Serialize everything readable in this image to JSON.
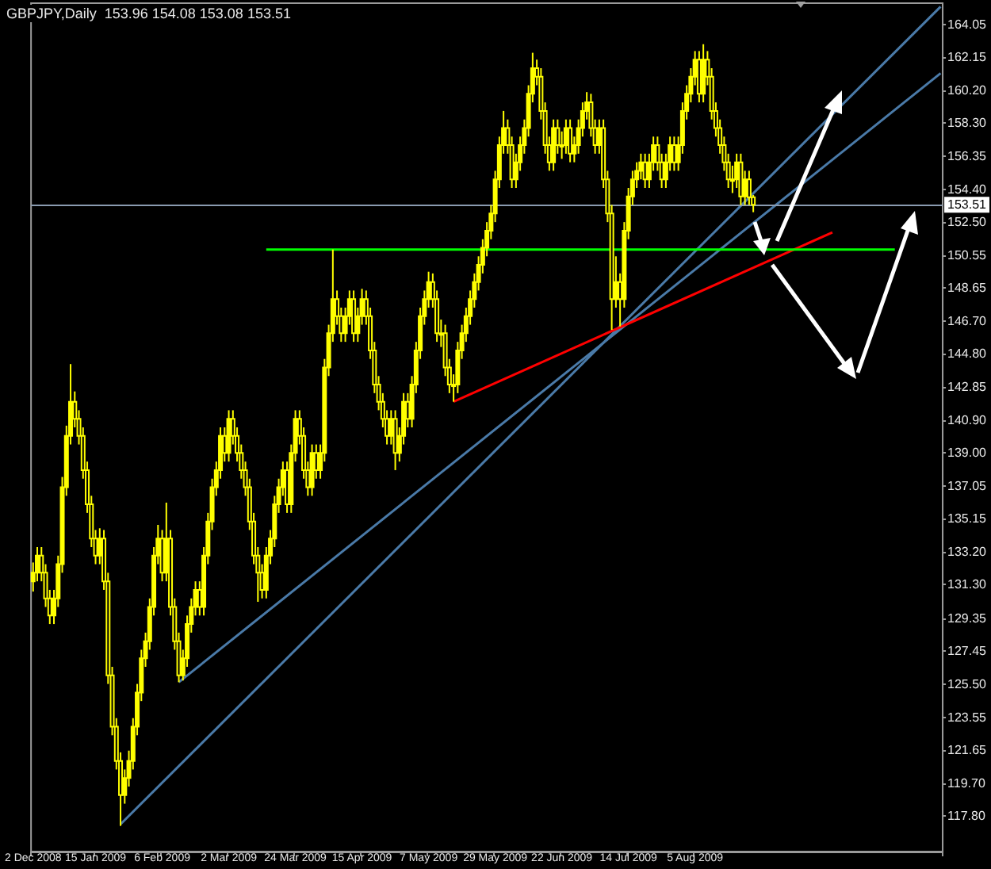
{
  "chart_data": {
    "type": "candlestick",
    "title": "GBPJPY,Daily  153.96 154.08 153.08 153.51",
    "categories": [
      "2 Dec 2008",
      null,
      null,
      null,
      null,
      null,
      null,
      null,
      null,
      null,
      null,
      null,
      null,
      null,
      null,
      "15 Jan 2009",
      null,
      null,
      null,
      null,
      null,
      null,
      null,
      null,
      null,
      null,
      null,
      null,
      null,
      null,
      null,
      "6 Feb 2009",
      null,
      null,
      null,
      null,
      null,
      null,
      null,
      null,
      null,
      null,
      null,
      null,
      null,
      null,
      null,
      "2 Mar 2009",
      null,
      null,
      null,
      null,
      null,
      null,
      null,
      null,
      null,
      null,
      null,
      null,
      null,
      null,
      null,
      "24 Mar 2009",
      null,
      null,
      null,
      null,
      null,
      null,
      null,
      null,
      null,
      null,
      null,
      null,
      null,
      null,
      null,
      "15 Apr 2009",
      null,
      null,
      null,
      null,
      null,
      null,
      null,
      null,
      null,
      null,
      null,
      null,
      null,
      null,
      null,
      "7 May 2009",
      null,
      null,
      null,
      null,
      null,
      null,
      null,
      null,
      null,
      null,
      null,
      null,
      null,
      null,
      null,
      "29 May 2009",
      null,
      null,
      null,
      null,
      null,
      null,
      null,
      null,
      null,
      null,
      null,
      null,
      null,
      null,
      null,
      "22 Jun 2009",
      null,
      null,
      null,
      null,
      null,
      null,
      null,
      null,
      null,
      null,
      null,
      null,
      null,
      null,
      null,
      "14 Jul 2009",
      null,
      null,
      null,
      null,
      null,
      null,
      null,
      null,
      null,
      null,
      null,
      null,
      null,
      null,
      null,
      "5 Aug 2009",
      null,
      null,
      null,
      null,
      null,
      null,
      null,
      null,
      null,
      null,
      null,
      null,
      null,
      null,
      null,
      null,
      null,
      null,
      null,
      null,
      null,
      null,
      null,
      null,
      null,
      null,
      null,
      null,
      null,
      null,
      null,
      null,
      null,
      null,
      null,
      null,
      null,
      null,
      null,
      null,
      null,
      null,
      null,
      null,
      null,
      null,
      null,
      null,
      null,
      null,
      null,
      null,
      null,
      null,
      null,
      null,
      null,
      null,
      null
    ],
    "ohlc": [
      [
        131.5,
        132.6,
        130.9,
        132
      ],
      [
        132,
        133.5,
        131.5,
        133
      ],
      [
        133,
        133.5,
        131.5,
        132
      ],
      [
        132,
        132.5,
        130,
        130.5
      ],
      [
        130.5,
        131,
        129,
        129.5
      ],
      [
        129.5,
        131,
        129,
        130.5
      ],
      [
        130.5,
        133,
        130,
        132.5
      ],
      [
        132.5,
        137.6,
        132,
        137
      ],
      [
        137,
        140.6,
        136.5,
        140
      ],
      [
        140,
        144.2,
        139.5,
        142
      ],
      [
        142,
        142.6,
        140.5,
        141
      ],
      [
        141,
        141.5,
        139.5,
        140
      ],
      [
        140,
        140.5,
        137.5,
        138
      ],
      [
        138,
        138.5,
        135.5,
        136
      ],
      [
        136,
        136.5,
        133.5,
        134
      ],
      [
        134,
        134.5,
        132.5,
        133
      ],
      [
        133,
        134.6,
        132.5,
        134
      ],
      [
        134,
        134.5,
        131,
        131.5
      ],
      [
        131.5,
        132,
        125.5,
        126
      ],
      [
        126,
        126.5,
        122.5,
        123
      ],
      [
        123,
        123.5,
        120.5,
        121
      ],
      [
        121,
        121.5,
        117.2,
        119
      ],
      [
        119,
        120.5,
        118.5,
        120
      ],
      [
        120,
        121.6,
        119.5,
        121
      ],
      [
        121,
        123.5,
        120.5,
        123
      ],
      [
        123,
        125.5,
        122.5,
        125
      ],
      [
        125,
        127.5,
        124.5,
        127
      ],
      [
        127,
        128.5,
        126.5,
        128
      ],
      [
        128,
        130.5,
        127.5,
        130
      ],
      [
        130,
        133.5,
        129.5,
        133
      ],
      [
        133,
        134.8,
        132.5,
        134
      ],
      [
        134,
        134.5,
        131.5,
        132
      ],
      [
        132,
        136.1,
        131.5,
        134
      ],
      [
        134,
        134.5,
        129.5,
        130
      ],
      [
        130,
        130.5,
        127.5,
        128
      ],
      [
        128,
        128.5,
        125.6,
        126
      ],
      [
        126,
        127.5,
        125.7,
        127
      ],
      [
        127,
        129.5,
        126.5,
        129
      ],
      [
        129,
        130.5,
        128.5,
        130
      ],
      [
        130,
        131.5,
        129.5,
        131
      ],
      [
        131,
        131.5,
        129.5,
        130
      ],
      [
        130,
        133.5,
        129.5,
        133
      ],
      [
        133,
        135.5,
        132.5,
        135
      ],
      [
        135,
        137.5,
        134.5,
        137
      ],
      [
        137,
        138.5,
        136.5,
        138
      ],
      [
        138,
        140.5,
        137.5,
        140
      ],
      [
        140,
        140.5,
        138.5,
        139
      ],
      [
        139,
        141.5,
        138.5,
        141
      ],
      [
        141,
        141.5,
        139.5,
        140
      ],
      [
        140,
        140.5,
        138.5,
        139
      ],
      [
        139,
        139.5,
        137.5,
        138
      ],
      [
        138,
        138.5,
        136.5,
        137
      ],
      [
        137,
        137.5,
        134.5,
        135
      ],
      [
        135,
        135.5,
        132.5,
        133
      ],
      [
        133,
        133.5,
        130.3,
        132
      ],
      [
        132,
        132.5,
        130.5,
        131
      ],
      [
        131,
        133.5,
        130.5,
        133
      ],
      [
        133,
        134.5,
        132.5,
        134
      ],
      [
        134,
        136.5,
        133.5,
        136
      ],
      [
        136,
        137.5,
        135.5,
        137
      ],
      [
        137,
        138.5,
        136.5,
        138
      ],
      [
        138,
        138.5,
        135.5,
        136
      ],
      [
        136,
        139.5,
        135.5,
        139
      ],
      [
        139,
        141.5,
        138.5,
        141
      ],
      [
        141,
        141.5,
        139.5,
        140
      ],
      [
        140,
        140.5,
        137.5,
        138
      ],
      [
        138,
        138.5,
        136.5,
        137
      ],
      [
        137,
        139.5,
        136.5,
        139
      ],
      [
        139,
        139.5,
        137.5,
        138
      ],
      [
        138,
        139.5,
        137.5,
        139
      ],
      [
        139,
        144.5,
        138.5,
        144
      ],
      [
        144,
        146.5,
        143.5,
        146
      ],
      [
        146,
        150.9,
        145.5,
        148
      ],
      [
        148,
        148.5,
        146.5,
        147
      ],
      [
        147,
        147.5,
        145.5,
        146
      ],
      [
        146,
        147.5,
        145.5,
        147
      ],
      [
        147,
        148.5,
        146.5,
        148
      ],
      [
        148,
        148.5,
        145.5,
        146
      ],
      [
        146,
        147.5,
        145.5,
        147
      ],
      [
        147,
        148.6,
        146.5,
        148
      ],
      [
        148,
        148.5,
        146.5,
        147
      ],
      [
        147,
        147.5,
        144.5,
        145
      ],
      [
        145,
        145.5,
        142.5,
        143
      ],
      [
        143,
        143.5,
        141.5,
        142
      ],
      [
        142,
        142.5,
        140.5,
        141
      ],
      [
        141,
        141.5,
        139.5,
        140
      ],
      [
        140,
        141.5,
        139.5,
        141
      ],
      [
        141,
        141.5,
        138,
        139
      ],
      [
        139,
        140.5,
        138.5,
        140
      ],
      [
        140,
        142.5,
        139.5,
        142
      ],
      [
        142,
        142.5,
        140.5,
        141
      ],
      [
        141,
        143.5,
        140.5,
        143
      ],
      [
        143,
        145.5,
        142.5,
        145
      ],
      [
        145,
        147.5,
        144.5,
        147
      ],
      [
        147,
        148.5,
        146.5,
        148
      ],
      [
        148,
        149.6,
        147.5,
        149
      ],
      [
        149,
        149.5,
        147.5,
        148
      ],
      [
        148,
        148.5,
        145.5,
        146
      ],
      [
        146,
        146.8,
        145.2,
        146
      ],
      [
        146,
        146.5,
        143.5,
        144
      ],
      [
        144,
        144.5,
        142.5,
        143
      ],
      [
        143,
        143.6,
        142,
        143
      ],
      [
        143,
        145.5,
        142.5,
        145
      ],
      [
        145,
        146.5,
        144.5,
        146
      ],
      [
        146,
        147.5,
        145.5,
        147
      ],
      [
        147,
        148.5,
        146.5,
        148
      ],
      [
        148,
        149.5,
        147.5,
        149
      ],
      [
        149,
        150.5,
        148.5,
        150
      ],
      [
        150,
        151.5,
        149.5,
        151
      ],
      [
        151,
        152.5,
        150.5,
        152
      ],
      [
        152,
        153.5,
        151.5,
        153
      ],
      [
        153,
        155.5,
        152.5,
        155
      ],
      [
        155,
        157.5,
        154.5,
        157
      ],
      [
        157,
        159,
        156.5,
        158
      ],
      [
        158,
        158.5,
        156.5,
        157
      ],
      [
        157,
        157.5,
        154.5,
        155
      ],
      [
        155,
        156.5,
        154.5,
        156
      ],
      [
        156,
        157.5,
        155.5,
        157
      ],
      [
        157,
        158.5,
        156.5,
        158
      ],
      [
        158,
        160.5,
        157.5,
        160
      ],
      [
        160,
        162.4,
        159.5,
        161.5
      ],
      [
        161.5,
        162,
        160.5,
        161
      ],
      [
        161,
        161.5,
        158.5,
        159
      ],
      [
        159,
        159.5,
        156.5,
        157
      ],
      [
        157,
        157.5,
        155.5,
        156
      ],
      [
        156,
        158.5,
        155.5,
        158
      ],
      [
        158,
        158.5,
        156.5,
        157
      ],
      [
        157,
        157.8,
        156.2,
        157
      ],
      [
        157,
        158.5,
        156.5,
        158
      ],
      [
        158,
        158.5,
        156,
        156.5
      ],
      [
        156.5,
        157.5,
        156,
        157
      ],
      [
        157,
        158.5,
        156.5,
        158
      ],
      [
        158,
        159.5,
        157.5,
        159
      ],
      [
        159,
        160.1,
        158.5,
        159.5
      ],
      [
        159.5,
        160,
        157.5,
        158
      ],
      [
        158,
        158.5,
        156.5,
        157
      ],
      [
        157,
        158.5,
        156.5,
        158
      ],
      [
        158,
        158.5,
        154.5,
        155
      ],
      [
        155,
        155.5,
        152.5,
        153
      ],
      [
        153,
        153.5,
        146.2,
        148
      ],
      [
        148,
        150.5,
        147.5,
        149
      ],
      [
        149,
        149.5,
        146.4,
        148
      ],
      [
        148,
        152.5,
        147.5,
        152
      ],
      [
        152,
        154.5,
        151.5,
        154
      ],
      [
        154,
        155.5,
        153.5,
        155
      ],
      [
        155,
        156,
        154.5,
        155.5
      ],
      [
        155.5,
        156.5,
        155,
        156
      ],
      [
        156,
        156.5,
        154.5,
        155
      ],
      [
        155,
        156.5,
        154.5,
        156
      ],
      [
        156,
        157.5,
        155.5,
        157
      ],
      [
        157,
        157.5,
        155.5,
        156
      ],
      [
        156,
        156.5,
        154.5,
        155
      ],
      [
        155,
        156.5,
        154.5,
        156
      ],
      [
        156,
        157.5,
        155.5,
        157
      ],
      [
        157,
        157.5,
        155.5,
        156
      ],
      [
        156,
        157.5,
        155.5,
        157
      ],
      [
        157,
        159.5,
        156.5,
        159
      ],
      [
        159,
        160.5,
        158.5,
        160
      ],
      [
        160,
        161.5,
        159.5,
        161
      ],
      [
        161,
        162.5,
        160.5,
        162
      ],
      [
        162,
        162.5,
        159.5,
        160
      ],
      [
        160,
        162.9,
        159.5,
        162
      ],
      [
        162,
        162.5,
        160.5,
        161
      ],
      [
        161,
        161.5,
        158.5,
        159
      ],
      [
        159,
        159.5,
        157.5,
        158
      ],
      [
        158,
        158.5,
        156.5,
        157
      ],
      [
        157,
        157.5,
        155.5,
        156
      ],
      [
        156,
        156.5,
        154.5,
        155
      ],
      [
        155,
        155.8,
        154.2,
        155
      ],
      [
        155,
        156.5,
        154.5,
        156
      ],
      [
        156,
        156.5,
        153.5,
        154
      ],
      [
        154,
        155.5,
        153.5,
        155
      ],
      [
        155,
        155.5,
        153.5,
        153.96
      ],
      [
        153.96,
        154.08,
        153.08,
        153.51
      ],
      null,
      null,
      null,
      null,
      null,
      null,
      null,
      null,
      null,
      null,
      null,
      null,
      null,
      null,
      null,
      null,
      null,
      null,
      null,
      null,
      null,
      null,
      null,
      null,
      null,
      null,
      null,
      null,
      null,
      null,
      null,
      null,
      null,
      null,
      null,
      null,
      null,
      null,
      null,
      null,
      null,
      null,
      null,
      null,
      null
    ],
    "color": "#ffff00",
    "series": [
      {
        "type": "line",
        "color": "#4a7aa8",
        "values": [
          null,
          null,
          null,
          null,
          null,
          null,
          null,
          null,
          null,
          null,
          null,
          null,
          null,
          null,
          null,
          null,
          null,
          null,
          null,
          null,
          null,
          117.3,
          null,
          null,
          null,
          null,
          null,
          null,
          null,
          null,
          null,
          null,
          null,
          null,
          null,
          null,
          null,
          null,
          null,
          null,
          null,
          null,
          null,
          null,
          null,
          null,
          null,
          null,
          null,
          null,
          null,
          null,
          null,
          null,
          null,
          null,
          null,
          null,
          null,
          null,
          null,
          null,
          null,
          null,
          null,
          null,
          null,
          null,
          null,
          null,
          null,
          null,
          null,
          null,
          null,
          null,
          null,
          null,
          null,
          null,
          null,
          null,
          null,
          null,
          null,
          null,
          null,
          null,
          null,
          null,
          null,
          null,
          null,
          null,
          null,
          null,
          null,
          null,
          null,
          null,
          null,
          null,
          null,
          null,
          null,
          null,
          null,
          null,
          null,
          null,
          null,
          null,
          null,
          null,
          null,
          null,
          null,
          null,
          null,
          null,
          null,
          null,
          null,
          null,
          null,
          null,
          null,
          null,
          null,
          null,
          null,
          null,
          null,
          null,
          null,
          null,
          null,
          null,
          null,
          null,
          null,
          null,
          null,
          null,
          null,
          null,
          null,
          null,
          null,
          null,
          null,
          null,
          null,
          null,
          null,
          null,
          null,
          null,
          null,
          null,
          null,
          null,
          null,
          null,
          null,
          null,
          null,
          null,
          null,
          null,
          null,
          null,
          null,
          null,
          null,
          null,
          null,
          null,
          null,
          null,
          null,
          null,
          null,
          null,
          null,
          null,
          null,
          null,
          null,
          null,
          null,
          null,
          null,
          null,
          null,
          null,
          null,
          null,
          null,
          null,
          null,
          null,
          null,
          null,
          null,
          null,
          null,
          null,
          null,
          null,
          null,
          null,
          null,
          null,
          null,
          null,
          null,
          null,
          165.1
        ]
      },
      {
        "type": "line",
        "color": "#4a7aa8",
        "values": [
          null,
          null,
          null,
          null,
          null,
          null,
          null,
          null,
          null,
          null,
          null,
          null,
          null,
          null,
          null,
          null,
          null,
          null,
          null,
          null,
          null,
          null,
          null,
          null,
          null,
          null,
          null,
          null,
          null,
          null,
          null,
          null,
          null,
          null,
          null,
          125.6,
          null,
          null,
          null,
          null,
          null,
          null,
          null,
          null,
          null,
          null,
          null,
          null,
          null,
          null,
          null,
          null,
          null,
          null,
          null,
          null,
          null,
          null,
          null,
          null,
          null,
          null,
          null,
          null,
          null,
          null,
          null,
          null,
          null,
          null,
          null,
          null,
          null,
          null,
          null,
          null,
          null,
          null,
          null,
          null,
          null,
          null,
          null,
          null,
          null,
          null,
          null,
          null,
          null,
          null,
          null,
          null,
          null,
          null,
          null,
          null,
          null,
          null,
          null,
          null,
          null,
          null,
          null,
          null,
          null,
          null,
          null,
          null,
          null,
          null,
          null,
          null,
          null,
          null,
          null,
          null,
          null,
          null,
          null,
          null,
          null,
          null,
          null,
          null,
          null,
          null,
          null,
          null,
          null,
          null,
          null,
          null,
          null,
          null,
          null,
          null,
          null,
          null,
          null,
          null,
          null,
          null,
          null,
          null,
          null,
          null,
          null,
          null,
          null,
          null,
          null,
          null,
          null,
          null,
          null,
          null,
          null,
          null,
          null,
          null,
          null,
          null,
          null,
          null,
          null,
          null,
          null,
          null,
          null,
          null,
          null,
          null,
          null,
          null,
          null,
          null,
          null,
          null,
          null,
          null,
          null,
          null,
          null,
          null,
          null,
          null,
          null,
          null,
          null,
          null,
          null,
          null,
          null,
          null,
          null,
          null,
          null,
          null,
          null,
          null,
          null,
          null,
          null,
          null,
          null,
          null,
          null,
          null,
          null,
          null,
          null,
          null,
          null,
          null,
          null,
          null,
          null,
          null,
          161.2
        ]
      },
      {
        "type": "line",
        "color": "#ff0000",
        "values": [
          null,
          null,
          null,
          null,
          null,
          null,
          null,
          null,
          null,
          null,
          null,
          null,
          null,
          null,
          null,
          null,
          null,
          null,
          null,
          null,
          null,
          null,
          null,
          null,
          null,
          null,
          null,
          null,
          null,
          null,
          null,
          null,
          null,
          null,
          null,
          null,
          null,
          null,
          null,
          null,
          null,
          null,
          null,
          null,
          null,
          null,
          null,
          null,
          null,
          null,
          null,
          null,
          null,
          null,
          null,
          null,
          null,
          null,
          null,
          null,
          null,
          null,
          null,
          null,
          null,
          null,
          null,
          null,
          null,
          null,
          null,
          null,
          null,
          null,
          null,
          null,
          null,
          null,
          null,
          null,
          null,
          null,
          null,
          null,
          null,
          null,
          null,
          null,
          null,
          null,
          null,
          null,
          null,
          null,
          null,
          null,
          null,
          null,
          null,
          null,
          null,
          142.0,
          null,
          null,
          null,
          null,
          null,
          null,
          null,
          null,
          null,
          null,
          null,
          null,
          null,
          null,
          null,
          null,
          null,
          null,
          null,
          null,
          null,
          null,
          null,
          null,
          null,
          null,
          null,
          null,
          null,
          null,
          null,
          null,
          null,
          null,
          null,
          null,
          null,
          null,
          null,
          null,
          null,
          null,
          null,
          null,
          null,
          null,
          null,
          null,
          null,
          null,
          null,
          null,
          null,
          null,
          null,
          null,
          null,
          null,
          null,
          null,
          null,
          null,
          null,
          null,
          null,
          null,
          null,
          null,
          null,
          null,
          null,
          null,
          null,
          null,
          null,
          null,
          null,
          null,
          null,
          null,
          null,
          null,
          null,
          null,
          null,
          null,
          null,
          null,
          null,
          null,
          151.9,
          null,
          null,
          null,
          null,
          null,
          null,
          null,
          null,
          null,
          null,
          null,
          null,
          null,
          null,
          null,
          null,
          null,
          null,
          null,
          null,
          null,
          null,
          null,
          null,
          null,
          null
        ]
      },
      {
        "type": "line",
        "color": "#00ff00",
        "values": [
          null,
          null,
          null,
          null,
          null,
          null,
          null,
          null,
          null,
          null,
          null,
          null,
          null,
          null,
          null,
          null,
          null,
          null,
          null,
          null,
          null,
          null,
          null,
          null,
          null,
          null,
          null,
          null,
          null,
          null,
          null,
          null,
          null,
          null,
          null,
          null,
          null,
          null,
          null,
          null,
          null,
          null,
          null,
          null,
          null,
          null,
          null,
          null,
          null,
          null,
          null,
          null,
          null,
          null,
          null,
          null,
          150.9,
          null,
          null,
          null,
          null,
          null,
          null,
          null,
          null,
          null,
          null,
          null,
          null,
          null,
          null,
          null,
          null,
          null,
          null,
          null,
          null,
          null,
          null,
          null,
          null,
          null,
          null,
          null,
          null,
          null,
          null,
          null,
          null,
          null,
          null,
          null,
          null,
          null,
          null,
          null,
          null,
          null,
          null,
          null,
          null,
          null,
          null,
          null,
          null,
          null,
          null,
          null,
          null,
          null,
          null,
          null,
          null,
          null,
          null,
          null,
          null,
          null,
          null,
          null,
          null,
          null,
          null,
          null,
          null,
          null,
          null,
          null,
          null,
          null,
          null,
          null,
          null,
          null,
          null,
          null,
          null,
          null,
          null,
          null,
          null,
          null,
          null,
          null,
          null,
          null,
          null,
          null,
          null,
          null,
          null,
          null,
          null,
          null,
          null,
          null,
          null,
          null,
          null,
          null,
          null,
          null,
          null,
          null,
          null,
          null,
          null,
          null,
          null,
          null,
          null,
          null,
          null,
          null,
          null,
          null,
          null,
          null,
          null,
          null,
          null,
          null,
          null,
          null,
          null,
          null,
          null,
          null,
          null,
          null,
          null,
          null,
          null,
          null,
          null,
          null,
          null,
          null,
          null,
          null,
          null,
          null,
          null,
          null,
          null,
          null,
          null,
          150.9,
          null,
          null,
          null,
          null,
          null,
          null,
          null,
          null,
          null,
          null,
          null
        ]
      }
    ],
    "ref_lines": [
      {
        "axis": "y",
        "value": 153.51,
        "label": "153.51",
        "color": "#8a9bb0"
      }
    ],
    "ylim": [
      115.7,
      165.3
    ],
    "yticks": [
      {
        "value": 117.8,
        "label": "117.80"
      },
      {
        "value": 119.7,
        "label": "119.70"
      },
      121.65,
      123.55,
      {
        "value": 125.5,
        "label": "125.50"
      },
      127.45,
      129.35,
      {
        "value": 131.3,
        "label": "131.30"
      },
      {
        "value": 133.2,
        "label": "133.20"
      },
      135.15,
      137.05,
      {
        "value": 139,
        "label": "139.00"
      },
      {
        "value": 140.9,
        "label": "140.90"
      },
      142.85,
      {
        "value": 144.8,
        "label": "144.80"
      },
      {
        "value": 146.7,
        "label": "146.70"
      },
      148.65,
      150.55,
      {
        "value": 152.5,
        "label": "152.50"
      },
      {
        "value": 154.4,
        "label": "154.40"
      },
      156.35,
      {
        "value": 158.3,
        "label": "158.30"
      },
      {
        "value": 160.2,
        "label": "160.20"
      },
      162.15,
      164.05
    ]
  }
}
